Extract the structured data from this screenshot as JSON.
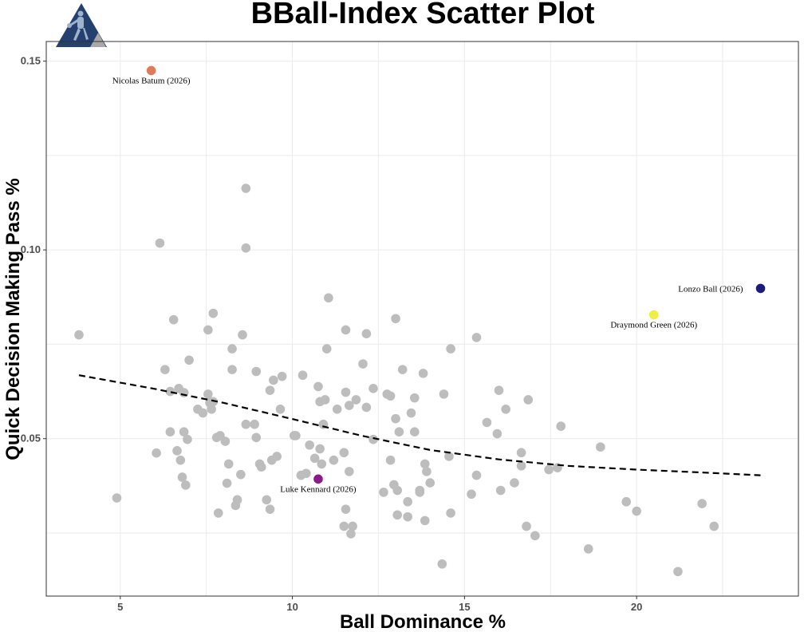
{
  "chart_data": {
    "type": "scatter",
    "title": "BBall-Index Scatter Plot",
    "xlabel": "Ball Dominance %",
    "ylabel": "Quick Decision Making Pass %",
    "xlim": [
      2.85,
      24.7
    ],
    "ylim": [
      0.0083,
      0.1552
    ],
    "x_ticks": [
      5,
      10,
      15,
      20
    ],
    "x_tick_labels": [
      "5",
      "10",
      "15",
      "20"
    ],
    "y_ticks": [
      0.05,
      0.1,
      0.15
    ],
    "y_tick_labels": [
      "0.05",
      "0.10",
      "0.15"
    ],
    "grid": true,
    "point_color": "#bdbdbd",
    "trend_line": {
      "style": "dashed",
      "color": "#000000",
      "points": [
        [
          3.8,
          0.0668
        ],
        [
          6,
          0.0632
        ],
        [
          8,
          0.0595
        ],
        [
          10,
          0.0552
        ],
        [
          12,
          0.0508
        ],
        [
          14,
          0.047
        ],
        [
          16,
          0.0445
        ],
        [
          18,
          0.0428
        ],
        [
          20,
          0.0418
        ],
        [
          22,
          0.041
        ],
        [
          23.6,
          0.0403
        ]
      ]
    },
    "highlighted": [
      {
        "label": "Nicolas Batum (2026)",
        "x": 5.9,
        "y": 0.1475,
        "color": "#e07b5a"
      },
      {
        "label": "Lonzo Ball (2026)",
        "x": 23.6,
        "y": 0.0898,
        "color": "#1c1c7a"
      },
      {
        "label": "Draymond Green (2026)",
        "x": 20.5,
        "y": 0.0828,
        "color": "#eeee44"
      },
      {
        "label": "Luke Kennard (2026)",
        "x": 10.75,
        "y": 0.0393,
        "color": "#8b1a8b"
      }
    ],
    "series": [
      {
        "points": [
          [
            3.8,
            0.0775
          ],
          [
            4.9,
            0.0343
          ],
          [
            6.05,
            0.0462
          ],
          [
            6.15,
            0.1018
          ],
          [
            6.3,
            0.0683
          ],
          [
            6.45,
            0.0625
          ],
          [
            6.45,
            0.0518
          ],
          [
            6.55,
            0.0815
          ],
          [
            6.65,
            0.0468
          ],
          [
            6.7,
            0.0633
          ],
          [
            6.75,
            0.0443
          ],
          [
            6.8,
            0.0398
          ],
          [
            6.85,
            0.0622
          ],
          [
            6.85,
            0.0518
          ],
          [
            6.9,
            0.0377
          ],
          [
            6.95,
            0.0498
          ],
          [
            7.0,
            0.0708
          ],
          [
            7.25,
            0.0578
          ],
          [
            7.4,
            0.0568
          ],
          [
            7.55,
            0.0788
          ],
          [
            7.55,
            0.0618
          ],
          [
            7.6,
            0.0595
          ],
          [
            7.65,
            0.0578
          ],
          [
            7.7,
            0.0832
          ],
          [
            7.7,
            0.0598
          ],
          [
            7.8,
            0.0503
          ],
          [
            7.85,
            0.0303
          ],
          [
            7.9,
            0.0508
          ],
          [
            8.05,
            0.0493
          ],
          [
            8.1,
            0.0382
          ],
          [
            8.15,
            0.0433
          ],
          [
            8.25,
            0.0683
          ],
          [
            8.25,
            0.0738
          ],
          [
            8.35,
            0.0323
          ],
          [
            8.4,
            0.0338
          ],
          [
            8.5,
            0.0405
          ],
          [
            8.55,
            0.0775
          ],
          [
            8.65,
            0.1163
          ],
          [
            8.65,
            0.1005
          ],
          [
            8.65,
            0.0538
          ],
          [
            8.9,
            0.0538
          ],
          [
            8.95,
            0.0678
          ],
          [
            8.95,
            0.0503
          ],
          [
            9.05,
            0.0433
          ],
          [
            9.1,
            0.0425
          ],
          [
            9.25,
            0.0338
          ],
          [
            9.35,
            0.0628
          ],
          [
            9.35,
            0.0313
          ],
          [
            9.4,
            0.0443
          ],
          [
            9.45,
            0.0655
          ],
          [
            9.55,
            0.0453
          ],
          [
            9.65,
            0.0578
          ],
          [
            9.7,
            0.0665
          ],
          [
            10.05,
            0.0508
          ],
          [
            10.1,
            0.0508
          ],
          [
            10.25,
            0.0403
          ],
          [
            10.3,
            0.0668
          ],
          [
            10.4,
            0.0408
          ],
          [
            10.5,
            0.0483
          ],
          [
            10.65,
            0.0448
          ],
          [
            10.75,
            0.0638
          ],
          [
            10.8,
            0.0598
          ],
          [
            10.8,
            0.0473
          ],
          [
            10.85,
            0.0433
          ],
          [
            10.9,
            0.0538
          ],
          [
            10.95,
            0.0603
          ],
          [
            11.0,
            0.0738
          ],
          [
            11.05,
            0.0873
          ],
          [
            11.2,
            0.0443
          ],
          [
            11.3,
            0.0578
          ],
          [
            11.5,
            0.0268
          ],
          [
            11.5,
            0.0463
          ],
          [
            11.55,
            0.0313
          ],
          [
            11.55,
            0.0788
          ],
          [
            11.55,
            0.0623
          ],
          [
            11.65,
            0.0588
          ],
          [
            11.65,
            0.0413
          ],
          [
            11.7,
            0.0248
          ],
          [
            11.75,
            0.0268
          ],
          [
            11.85,
            0.0603
          ],
          [
            12.05,
            0.0698
          ],
          [
            12.15,
            0.0583
          ],
          [
            12.15,
            0.0778
          ],
          [
            12.35,
            0.0498
          ],
          [
            12.35,
            0.0633
          ],
          [
            12.65,
            0.0358
          ],
          [
            12.75,
            0.0618
          ],
          [
            12.85,
            0.0613
          ],
          [
            12.85,
            0.0443
          ],
          [
            12.95,
            0.0378
          ],
          [
            13.0,
            0.0818
          ],
          [
            13.0,
            0.0553
          ],
          [
            13.05,
            0.0298
          ],
          [
            13.05,
            0.0363
          ],
          [
            13.1,
            0.0518
          ],
          [
            13.2,
            0.0683
          ],
          [
            13.35,
            0.0293
          ],
          [
            13.35,
            0.0333
          ],
          [
            13.45,
            0.0568
          ],
          [
            13.55,
            0.0608
          ],
          [
            13.55,
            0.0518
          ],
          [
            13.7,
            0.0358
          ],
          [
            13.7,
            0.0363
          ],
          [
            13.8,
            0.0673
          ],
          [
            13.85,
            0.0433
          ],
          [
            13.85,
            0.0283
          ],
          [
            13.9,
            0.0413
          ],
          [
            14.0,
            0.0383
          ],
          [
            14.35,
            0.0168
          ],
          [
            14.4,
            0.0618
          ],
          [
            14.55,
            0.0453
          ],
          [
            14.6,
            0.0738
          ],
          [
            14.6,
            0.0303
          ],
          [
            15.2,
            0.0353
          ],
          [
            15.35,
            0.0768
          ],
          [
            15.35,
            0.0403
          ],
          [
            15.65,
            0.0543
          ],
          [
            15.95,
            0.0513
          ],
          [
            16.0,
            0.0628
          ],
          [
            16.05,
            0.0363
          ],
          [
            16.2,
            0.0578
          ],
          [
            16.45,
            0.0383
          ],
          [
            16.65,
            0.0463
          ],
          [
            16.65,
            0.0428
          ],
          [
            16.8,
            0.0268
          ],
          [
            16.85,
            0.0603
          ],
          [
            17.05,
            0.0243
          ],
          [
            17.45,
            0.0418
          ],
          [
            17.7,
            0.0423
          ],
          [
            17.8,
            0.0533
          ],
          [
            18.6,
            0.0208
          ],
          [
            18.95,
            0.0478
          ],
          [
            19.7,
            0.0333
          ],
          [
            20.0,
            0.0308
          ],
          [
            21.2,
            0.0148
          ],
          [
            21.9,
            0.0328
          ],
          [
            22.25,
            0.0268
          ]
        ]
      }
    ]
  }
}
